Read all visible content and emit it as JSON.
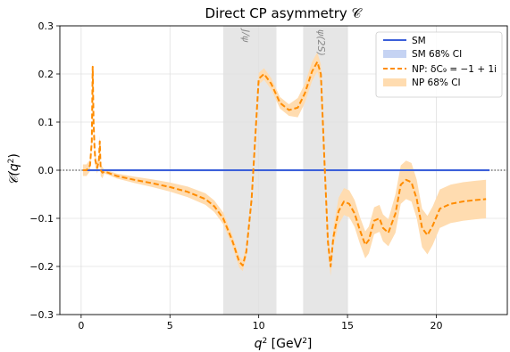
{
  "chart_data": {
    "type": "line",
    "title": "Direct CP asymmetry 𝒞",
    "xlabel_main": "q",
    "xlabel_sup": "2",
    "xlabel_unit_pre": " [GeV",
    "xlabel_unit_sup": "2",
    "xlabel_unit_post": "]",
    "ylabel_main": "𝒞(q",
    "ylabel_sup": "2",
    "ylabel_post": ")",
    "xlim": [
      -1.2,
      24.0
    ],
    "ylim": [
      -0.3,
      0.3
    ],
    "xticks": [
      0,
      5,
      10,
      15,
      20
    ],
    "xtick_labels": [
      "0",
      "5",
      "10",
      "15",
      "20"
    ],
    "yticks": [
      -0.3,
      -0.2,
      -0.1,
      0.0,
      0.1,
      0.2,
      0.3
    ],
    "ytick_labels": [
      "−0.3",
      "−0.2",
      "−0.1",
      "0.0",
      "0.1",
      "0.2",
      "0.3"
    ],
    "grid": true,
    "legend_position": "top-right",
    "bands": [
      {
        "label": "J/ψ",
        "x": [
          8.0,
          11.0
        ]
      },
      {
        "label": "ψ(2S)",
        "x": [
          12.5,
          15.0
        ]
      }
    ],
    "series": [
      {
        "name": "SM",
        "style": "solid",
        "color": "#3b5fd9",
        "x": [
          0.2,
          23.0
        ],
        "y": [
          0.0,
          0.0
        ]
      },
      {
        "name": "NP: δC₉ = −1 + 1i",
        "style": "dashed",
        "color": "#ff8c00",
        "x": [
          0.1,
          0.3,
          0.5,
          0.6,
          0.65,
          0.7,
          0.75,
          0.8,
          0.9,
          1.0,
          1.05,
          1.1,
          1.2,
          1.3,
          1.5,
          2.0,
          3.0,
          4.0,
          5.0,
          6.0,
          7.0,
          7.5,
          8.0,
          8.5,
          8.9,
          9.1,
          9.3,
          9.6,
          10.0,
          10.3,
          10.7,
          11.2,
          11.7,
          12.2,
          12.6,
          13.0,
          13.3,
          13.5,
          13.7,
          13.9,
          14.05,
          14.2,
          14.5,
          14.8,
          15.1,
          15.4,
          15.7,
          16.0,
          16.2,
          16.5,
          16.8,
          17.0,
          17.3,
          17.7,
          18.0,
          18.3,
          18.6,
          18.9,
          19.2,
          19.5,
          19.8,
          20.2,
          20.8,
          21.5,
          22.2,
          22.8
        ],
        "y": [
          0.0,
          0.0,
          0.01,
          0.06,
          0.215,
          0.1,
          0.05,
          0.02,
          0.005,
          0.02,
          0.06,
          0.0,
          -0.005,
          -0.003,
          -0.005,
          -0.012,
          -0.02,
          -0.027,
          -0.035,
          -0.045,
          -0.06,
          -0.075,
          -0.1,
          -0.145,
          -0.19,
          -0.198,
          -0.17,
          -0.06,
          0.19,
          0.2,
          0.18,
          0.14,
          0.125,
          0.13,
          0.16,
          0.205,
          0.225,
          0.2,
          0.02,
          -0.15,
          -0.2,
          -0.14,
          -0.085,
          -0.065,
          -0.07,
          -0.09,
          -0.125,
          -0.155,
          -0.145,
          -0.105,
          -0.1,
          -0.12,
          -0.13,
          -0.09,
          -0.03,
          -0.02,
          -0.025,
          -0.06,
          -0.12,
          -0.135,
          -0.115,
          -0.08,
          -0.07,
          -0.065,
          -0.062,
          -0.06
        ]
      }
    ],
    "ci_bands": [
      {
        "name": "SM 68% CI",
        "color": "#c5d3f3"
      },
      {
        "name": "NP 68% CI",
        "color": "#ffdcb0"
      }
    ]
  }
}
